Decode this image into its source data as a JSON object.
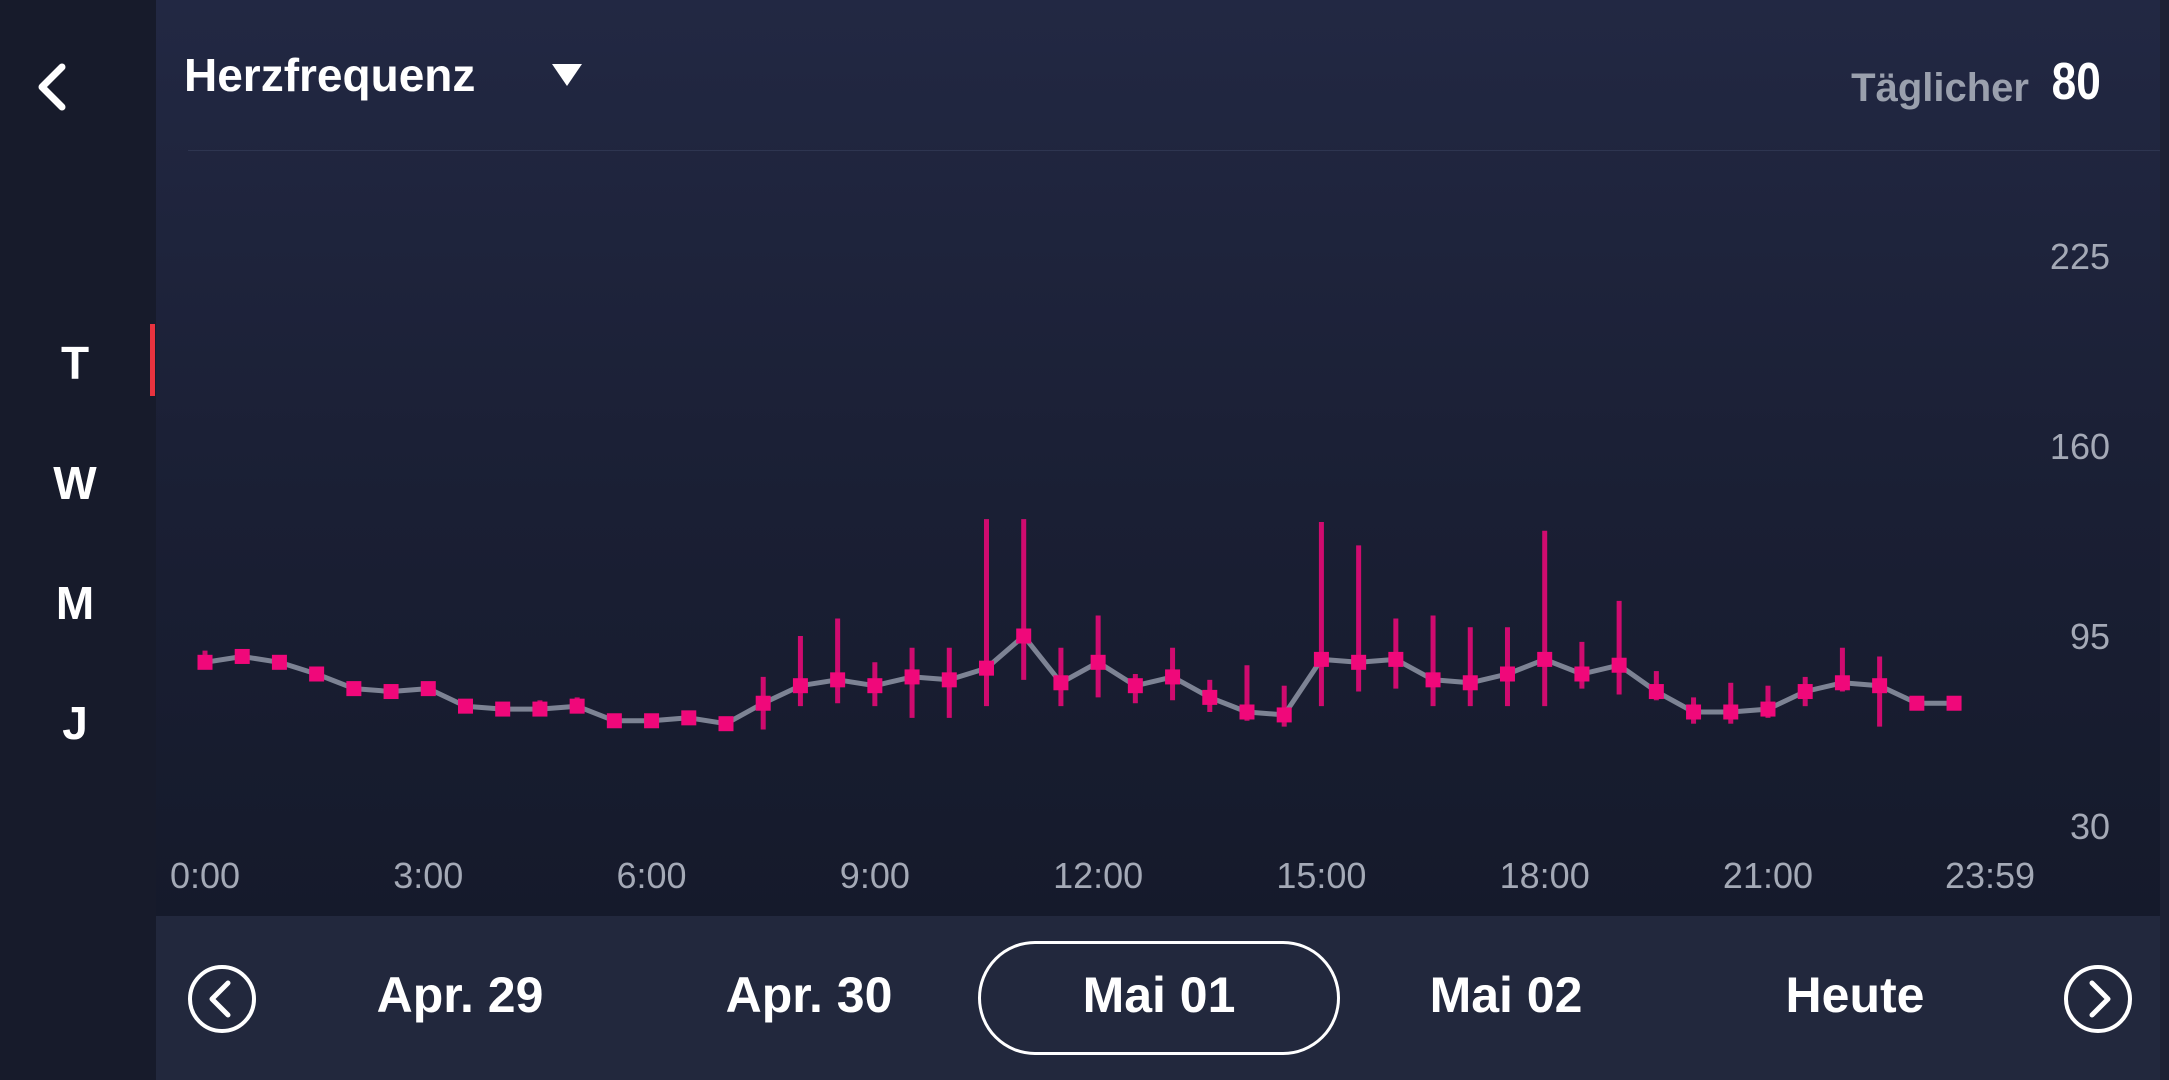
{
  "header": {
    "title": "Herzfrequenz",
    "daily_label": "Täglicher",
    "daily_value": "80"
  },
  "sidebar": {
    "ranges": [
      "T",
      "W",
      "M",
      "J"
    ],
    "selected": "T"
  },
  "icons": {
    "back": "chevron-left-icon",
    "dropdown": "caret-down-icon",
    "prev": "circle-chevron-left-icon",
    "next": "circle-chevron-right-icon"
  },
  "colors": {
    "accent": "#f0087a",
    "line": "#7d8394",
    "indicator": "#e8333f",
    "background": "#1c2133"
  },
  "dates": {
    "items": [
      "Apr. 29",
      "Apr. 30",
      "Mai 01",
      "Mai 02",
      "Heute"
    ],
    "selected": "Mai 01"
  },
  "chart_data": {
    "type": "line",
    "x_ticks": [
      "0:00",
      "3:00",
      "6:00",
      "9:00",
      "12:00",
      "15:00",
      "18:00",
      "21:00",
      "23:59"
    ],
    "y_ticks": [
      225,
      160,
      95,
      30
    ],
    "ylim": [
      30,
      225
    ],
    "x": [
      0,
      0.5,
      1,
      1.5,
      2,
      2.5,
      3,
      3.5,
      4,
      4.5,
      5,
      5.5,
      6,
      6.5,
      7,
      7.5,
      8,
      8.5,
      9,
      9.5,
      10,
      10.5,
      11,
      11.5,
      12,
      12.5,
      13,
      13.5,
      14,
      14.5,
      15,
      15.5,
      16,
      16.5,
      17,
      17.5,
      18,
      18.5,
      19,
      19.5,
      20,
      20.5,
      21,
      21.5,
      22,
      22.5,
      23,
      23.5
    ],
    "avg": [
      86,
      88,
      86,
      82,
      77,
      76,
      77,
      71,
      70,
      70,
      71,
      66,
      66,
      67,
      65,
      72,
      78,
      80,
      78,
      81,
      80,
      84,
      95,
      79,
      86,
      78,
      81,
      74,
      69,
      68,
      87,
      86,
      87,
      80,
      79,
      82,
      87,
      82,
      85,
      76,
      69,
      69,
      70,
      76,
      79,
      78,
      72,
      72
    ],
    "min": [
      84,
      87,
      85,
      80,
      76,
      75,
      75,
      70,
      69,
      68,
      69,
      64,
      64,
      65,
      64,
      63,
      71,
      72,
      71,
      67,
      67,
      71,
      80,
      71,
      74,
      72,
      73,
      69,
      66,
      64,
      71,
      76,
      77,
      71,
      71,
      71,
      71,
      77,
      75,
      73,
      65,
      65,
      67,
      71,
      76,
      64,
      71,
      72
    ],
    "max": [
      90,
      89,
      87,
      84,
      78,
      77,
      79,
      72,
      72,
      73,
      74,
      68,
      68,
      68,
      66,
      81,
      95,
      101,
      86,
      91,
      91,
      135,
      135,
      91,
      102,
      82,
      91,
      80,
      85,
      78,
      134,
      126,
      101,
      102,
      98,
      98,
      131,
      93,
      107,
      83,
      74,
      79,
      78,
      81,
      91,
      88,
      72,
      73
    ]
  }
}
